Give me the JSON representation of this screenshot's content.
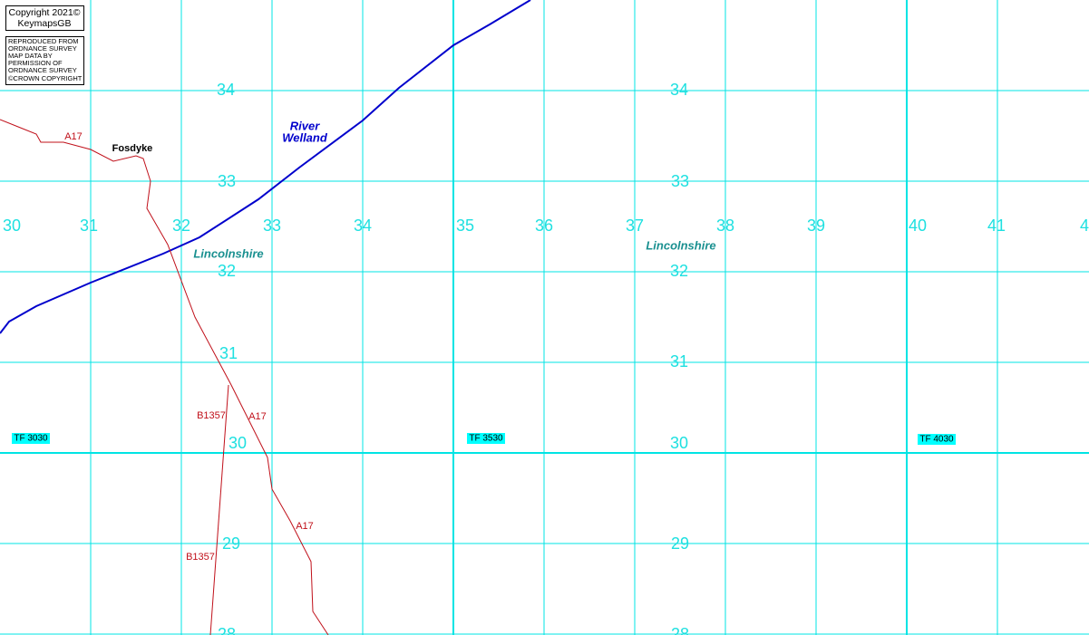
{
  "copyright": {
    "lines": [
      "Copyright 2021©",
      "KeymapsGB"
    ]
  },
  "license": {
    "lines": [
      "REPRODUCED FROM",
      "ORDNANCE SURVEY",
      "MAP DATA BY",
      "PERMISSION OF",
      "ORDNANCE SURVEY",
      "©CROWN COPYRIGHT"
    ]
  },
  "eastings": [
    "30",
    "31",
    "32",
    "33",
    "34",
    "35",
    "36",
    "37",
    "38",
    "39",
    "40",
    "41",
    "4"
  ],
  "northings_west": [
    "34",
    "33",
    "32",
    "31",
    "30",
    "29",
    "28"
  ],
  "northings_east": [
    "34",
    "33",
    "32",
    "31",
    "30",
    "29",
    "28"
  ],
  "places": [
    "Fosdyke",
    "River",
    "Welland",
    "Lincolnshire",
    "Lincolnshire"
  ],
  "roads": [
    "A17",
    "A17",
    "A17",
    "B1357",
    "B1357"
  ],
  "tiles": [
    "TF 3030",
    "TF 3530",
    "TF 4030"
  ]
}
